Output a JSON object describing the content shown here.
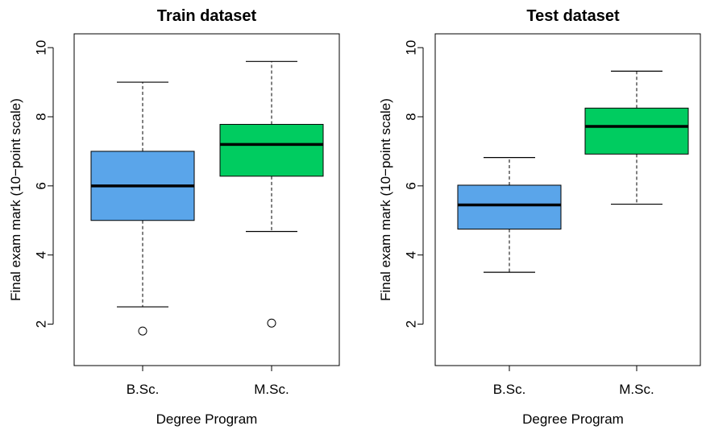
{
  "chart_data": [
    {
      "type": "box",
      "title": "Train dataset",
      "xlabel": "Degree Program",
      "ylabel": "Final exam mark (10−point scale)",
      "ylim": [
        0.8,
        10.4
      ],
      "yticks": [
        "2",
        "4",
        "6",
        "8",
        "10"
      ],
      "grid": false,
      "categories": [
        "B.Sc.",
        "M.Sc."
      ],
      "boxes": [
        {
          "name": "B.Sc.",
          "whisker_low": 2.5,
          "q1": 5.0,
          "median": 6.0,
          "q3": 7.0,
          "whisker_high": 9.0,
          "outliers": [
            1.8
          ],
          "color": "#5aa5ea"
        },
        {
          "name": "M.Sc.",
          "whisker_low": 4.68,
          "q1": 6.28,
          "median": 7.2,
          "q3": 7.78,
          "whisker_high": 9.6,
          "outliers": [
            2.03
          ],
          "color": "#00cc60"
        }
      ]
    },
    {
      "type": "box",
      "title": "Test dataset",
      "xlabel": "Degree Program",
      "ylabel": "Final exam mark (10−point scale)",
      "ylim": [
        0.8,
        10.4
      ],
      "yticks": [
        "2",
        "4",
        "6",
        "8",
        "10"
      ],
      "grid": false,
      "categories": [
        "B.Sc.",
        "M.Sc."
      ],
      "boxes": [
        {
          "name": "B.Sc.",
          "whisker_low": 3.5,
          "q1": 4.75,
          "median": 5.45,
          "q3": 6.02,
          "whisker_high": 6.82,
          "outliers": [],
          "color": "#5aa5ea"
        },
        {
          "name": "M.Sc.",
          "whisker_low": 5.47,
          "q1": 6.92,
          "median": 7.72,
          "q3": 8.25,
          "whisker_high": 9.32,
          "outliers": [],
          "color": "#00cc60"
        }
      ]
    }
  ]
}
